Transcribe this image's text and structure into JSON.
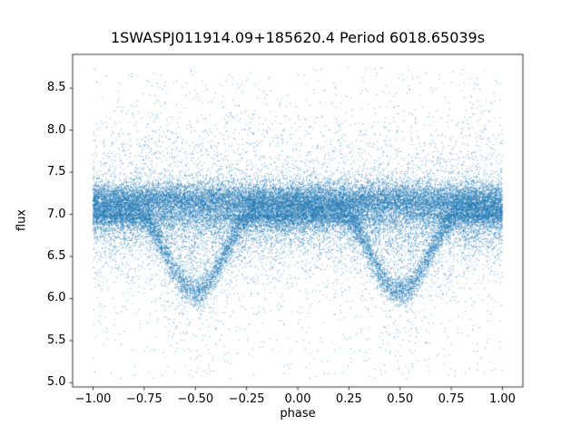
{
  "figure": {
    "background": "#ffffff"
  },
  "chart_data": {
    "type": "scatter",
    "title": "1SWASPJ011914.09+185620.4 Period 6018.65039s",
    "xlabel": "phase",
    "ylabel": "flux",
    "xlim": [
      -1.1,
      1.1
    ],
    "ylim": [
      4.95,
      8.9
    ],
    "xticks": [
      -1.0,
      -0.75,
      -0.5,
      -0.25,
      0.0,
      0.25,
      0.5,
      0.75,
      1.0
    ],
    "xtick_labels": [
      "−1.00",
      "−0.75",
      "−0.50",
      "−0.25",
      "0.00",
      "0.25",
      "0.50",
      "0.75",
      "1.00"
    ],
    "yticks": [
      5.0,
      5.5,
      6.0,
      6.5,
      7.0,
      7.5,
      8.0,
      8.5
    ],
    "ytick_labels": [
      "5.0",
      "5.5",
      "6.0",
      "6.5",
      "7.0",
      "7.5",
      "8.0",
      "8.5"
    ],
    "grid": false,
    "legend": null,
    "marker_color": "#1f77b4",
    "marker_alpha": 0.7,
    "marker_size_px": 1,
    "n_points": 40000,
    "seed": 20180119,
    "x_data_range": [
      -1.0,
      1.0
    ],
    "model": {
      "description": "Phase-folded light curve: dense flux band near 7.0–7.35 at all phases, eclipse dips reaching flux ≈ 6.0–6.1 centered at phase ±0.5 (with a sparser hollow near flux 6.8 inside each dip), and sparse outlier scatter from ≈5.05 up to ≈8.75.",
      "band": {
        "p": 0.45,
        "center": 7.15,
        "sigma": 0.12
      },
      "eclipse_arc": {
        "p": 0.22,
        "top": 7.03,
        "depth": 0.95,
        "sigma": 0.09,
        "half_width": 0.3
      },
      "lower_tail": {
        "p": 0.18,
        "top": 7.0,
        "scale": 0.17,
        "eclipse_boost": 1.6
      },
      "halo": {
        "p": 0.12,
        "center": 7.15,
        "sigma": 0.5
      },
      "uniform": {
        "p": 0.03
      },
      "flux_min": 5.05,
      "flux_max": 8.75
    }
  }
}
